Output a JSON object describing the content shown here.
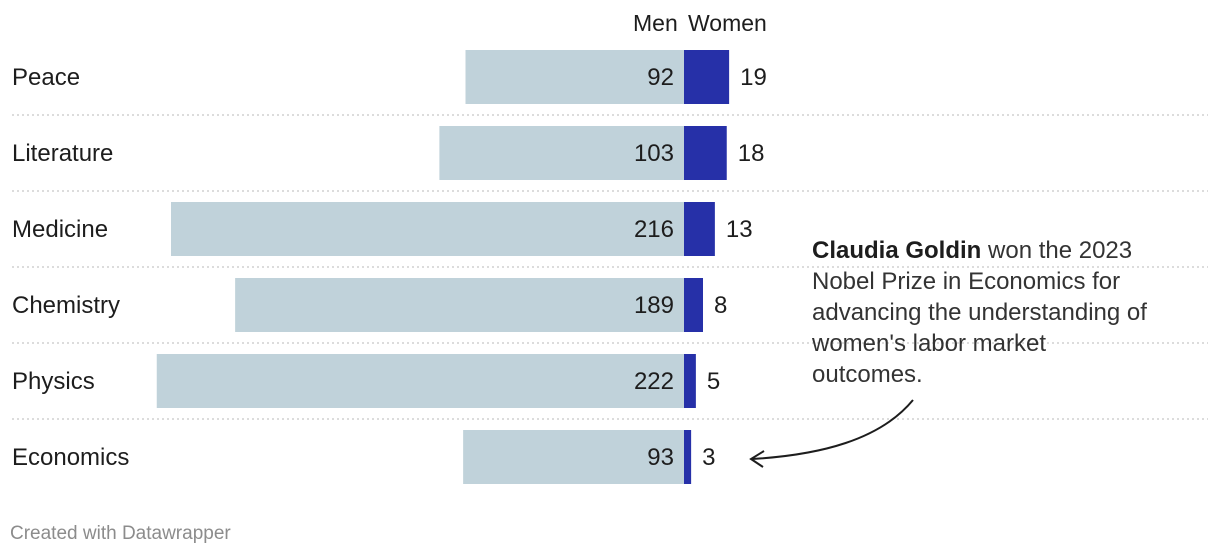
{
  "legend": {
    "men": "Men",
    "women": "Women"
  },
  "colors": {
    "men": "#c0d2da",
    "women": "#2630a8",
    "divider": "#c8c8c8"
  },
  "chart_data": {
    "type": "bar",
    "orientation": "horizontal-diverging",
    "categories": [
      "Peace",
      "Literature",
      "Medicine",
      "Chemistry",
      "Physics",
      "Economics"
    ],
    "series": [
      {
        "name": "Men",
        "values": [
          92,
          103,
          216,
          189,
          222,
          93
        ]
      },
      {
        "name": "Women",
        "values": [
          19,
          18,
          13,
          8,
          5,
          3
        ]
      }
    ]
  },
  "annotation": {
    "bold": "Claudia Goldin",
    "text": " won the 2023 Nobel Prize in Economics for advancing the understanding of women's labor market outcomes."
  },
  "footer": "Created with Datawrapper"
}
